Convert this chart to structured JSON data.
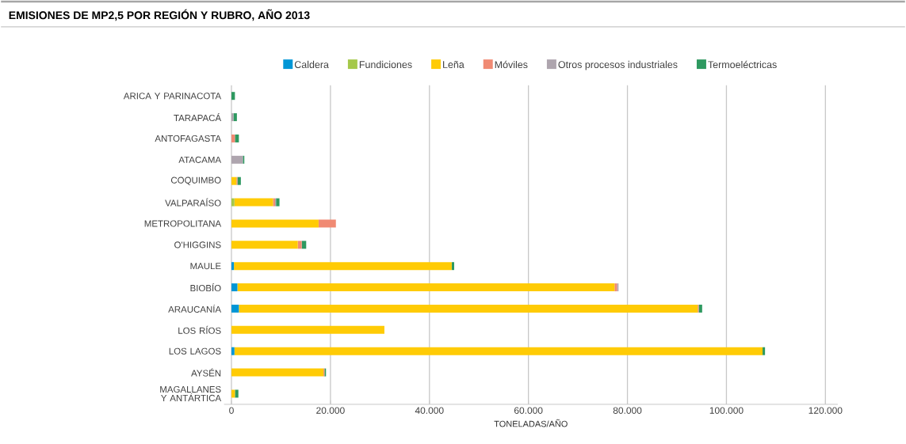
{
  "chart_data": {
    "type": "bar",
    "orientation": "horizontal",
    "stacked": true,
    "title": "EMISIONES DE MP2,5 POR REGIÓN Y RUBRO, AÑO 2013",
    "xlabel": "TONELADAS/AÑO",
    "categories": [
      "ARICA Y PARINACOTA",
      "TARAPACÁ",
      "ANTOFAGASTA",
      "ATACAMA",
      "COQUIMBO",
      "VALPARAÍSO",
      "METROPOLITANA",
      "O'HIGGINS",
      "MAULE",
      "BIOBÍO",
      "ARAUCANÍA",
      "LOS RÍOS",
      "LOS LAGOS",
      "AYSÉN",
      "MAGALLANES Y ANTÁRTICA"
    ],
    "series": [
      {
        "name": "Caldera",
        "color": "#0096d6",
        "values": [
          null,
          null,
          null,
          null,
          null,
          null,
          null,
          null,
          500,
          1200,
          1500,
          null,
          600,
          null,
          null
        ]
      },
      {
        "name": "Fundiciones",
        "color": "#a5c84a",
        "values": [
          null,
          null,
          null,
          null,
          null,
          600,
          null,
          null,
          null,
          null,
          null,
          null,
          null,
          null,
          null
        ]
      },
      {
        "name": "Leña",
        "color": "#ffcb05",
        "values": [
          null,
          null,
          null,
          null,
          1000,
          7800,
          17600,
          13400,
          44000,
          76200,
          92700,
          30900,
          106700,
          18600,
          700
        ]
      },
      {
        "name": "Móviles",
        "color": "#f08a73",
        "values": [
          null,
          null,
          700,
          null,
          200,
          400,
          3500,
          800,
          null,
          500,
          200,
          null,
          null,
          200,
          null
        ]
      },
      {
        "name": "Otros procesos industriales",
        "color": "#aea5ae",
        "values": [
          null,
          400,
          null,
          2300,
          null,
          200,
          null,
          null,
          null,
          300,
          null,
          null,
          null,
          null,
          null
        ]
      },
      {
        "name": "Termoeléctricas",
        "color": "#2e9960",
        "values": [
          700,
          700,
          800,
          300,
          700,
          700,
          null,
          900,
          500,
          null,
          700,
          null,
          500,
          300,
          700
        ]
      }
    ],
    "xlim": [
      -1500,
      122500
    ],
    "xticks": [
      0,
      {
        "value": 20000,
        "label": "20.000"
      },
      {
        "value": 40000,
        "label": "40.000"
      },
      {
        "value": 60000,
        "label": "60.000"
      },
      {
        "value": 80000,
        "label": "80.000"
      },
      {
        "value": 100000,
        "label": "100.000"
      },
      {
        "value": 120000,
        "label": "120.000"
      }
    ],
    "grid": "x",
    "legend": "top"
  }
}
